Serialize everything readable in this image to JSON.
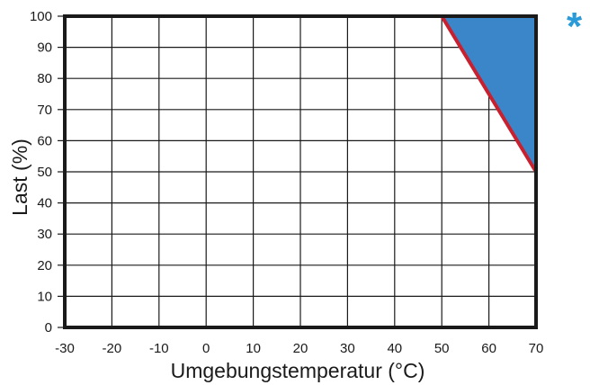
{
  "chart_data": {
    "type": "line",
    "title": "",
    "xlabel": "Umgebungstemperatur (°C)",
    "ylabel": "Last (%)",
    "xlim": [
      -30,
      70
    ],
    "ylim": [
      0,
      100
    ],
    "x_ticks": [
      -30,
      -20,
      -10,
      0,
      10,
      20,
      30,
      40,
      50,
      60,
      70
    ],
    "y_ticks": [
      0,
      10,
      20,
      30,
      40,
      50,
      60,
      70,
      80,
      90,
      100
    ],
    "grid": true,
    "series": [
      {
        "x": [
          -30,
          50,
          70,
          70
        ],
        "y": [
          100,
          100,
          50,
          0
        ]
      }
    ],
    "shaded_region": {
      "x": [
        50,
        70,
        70
      ],
      "y": [
        100,
        100,
        50
      ]
    },
    "annotation": "*",
    "colors": {
      "derating_line": "#c8202f",
      "shaded_region": "#3a86c8",
      "asterisk": "#2a9ad8",
      "frame": "#1a1a1a",
      "grid": "#1a1a1a"
    }
  }
}
